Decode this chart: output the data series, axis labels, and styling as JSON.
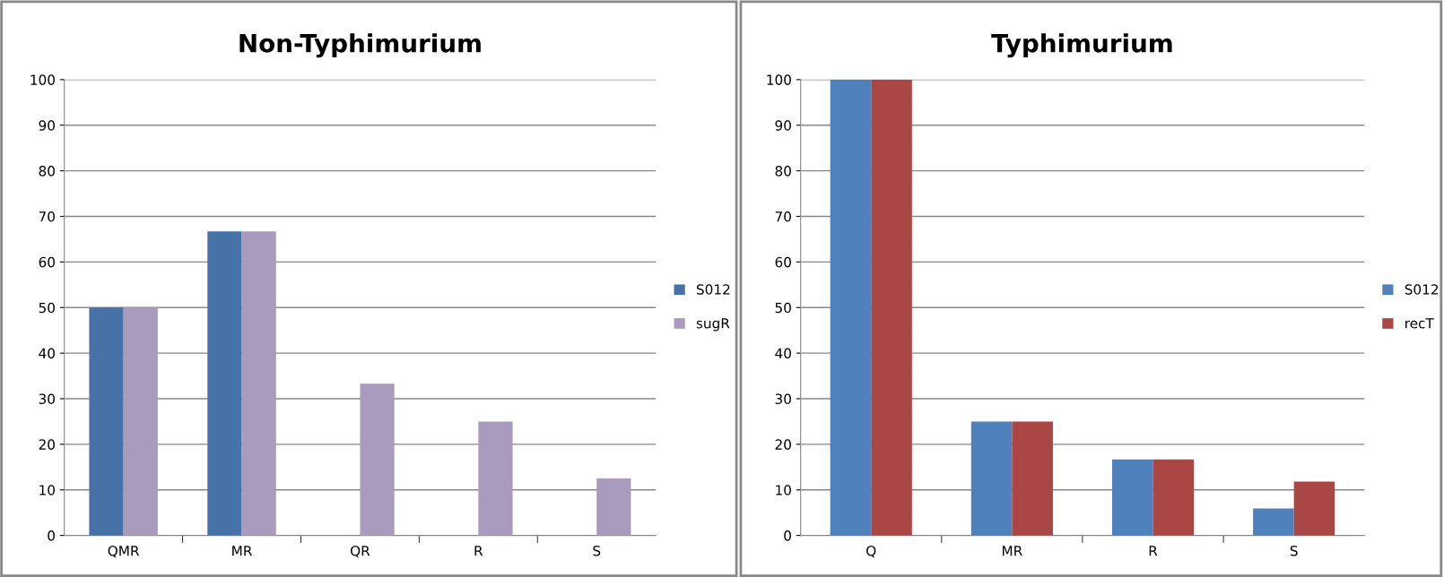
{
  "chart_data": [
    {
      "type": "bar",
      "title": "Non-Typhimurium",
      "categories": [
        "QMR",
        "MR",
        "QR",
        "R",
        "S"
      ],
      "series": [
        {
          "name": "S012",
          "color": "#4672a8",
          "values": [
            50,
            66.7,
            0,
            0,
            0
          ]
        },
        {
          "name": "sugR",
          "color": "#a99bbd",
          "values": [
            50,
            66.7,
            33.3,
            25,
            12.5
          ]
        }
      ],
      "ylim": [
        0,
        100
      ],
      "yticks": [
        0,
        10,
        20,
        30,
        40,
        50,
        60,
        70,
        80,
        90,
        100
      ],
      "grid": "y",
      "legend": "right"
    },
    {
      "type": "bar",
      "title": "Typhimurium",
      "categories": [
        "Q",
        "MR",
        "R",
        "S"
      ],
      "series": [
        {
          "name": "S012",
          "color": "#4f81bd",
          "values": [
            100,
            25,
            16.7,
            5.9
          ]
        },
        {
          "name": "recT",
          "color": "#aa4643",
          "values": [
            100,
            25,
            16.7,
            11.8
          ]
        }
      ],
      "ylim": [
        0,
        100
      ],
      "yticks": [
        0,
        10,
        20,
        30,
        40,
        50,
        60,
        70,
        80,
        90,
        100
      ],
      "grid": "y",
      "legend": "right"
    }
  ]
}
